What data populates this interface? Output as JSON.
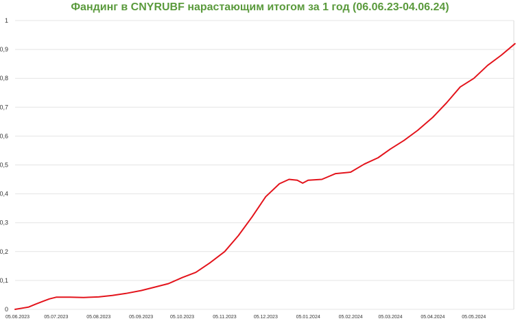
{
  "chart_data": {
    "type": "line",
    "title": "Фандинг в CNYRUBF нарастающим итогом за 1 год (06.06.23-04.06.24)",
    "xlabel": "",
    "ylabel": "",
    "ylim": [
      0,
      1
    ],
    "grid": true,
    "legend": "none",
    "y_ticks": [
      "0",
      "0,1",
      "0,2",
      "0,3",
      "0,4",
      "0,5",
      "0,6",
      "0,7",
      "0,8",
      "0,9",
      "1"
    ],
    "x_tick_labels": [
      "05.06.2023",
      "05.07.2023",
      "05.08.2023",
      "05.09.2023",
      "05.10.2023",
      "05.11.2023",
      "05.12.2023",
      "05.01.2024",
      "05.02.2024",
      "05.03.2024",
      "05.04.2024",
      "05.05.2024"
    ],
    "series": [
      {
        "color": "#e3131b",
        "points": [
          [
            "05.06.2023",
            0.0
          ],
          [
            "10.06.2023",
            0.004
          ],
          [
            "15.06.2023",
            0.008
          ],
          [
            "20.06.2023",
            0.018
          ],
          [
            "25.06.2023",
            0.027
          ],
          [
            "30.06.2023",
            0.036
          ],
          [
            "05.07.2023",
            0.042
          ],
          [
            "15.07.2023",
            0.042
          ],
          [
            "25.07.2023",
            0.041
          ],
          [
            "05.08.2023",
            0.043
          ],
          [
            "15.08.2023",
            0.048
          ],
          [
            "25.08.2023",
            0.055
          ],
          [
            "05.09.2023",
            0.065
          ],
          [
            "15.09.2023",
            0.077
          ],
          [
            "25.09.2023",
            0.089
          ],
          [
            "05.10.2023",
            0.11
          ],
          [
            "15.10.2023",
            0.128
          ],
          [
            "25.10.2023",
            0.16
          ],
          [
            "05.11.2023",
            0.2
          ],
          [
            "15.11.2023",
            0.255
          ],
          [
            "25.11.2023",
            0.32
          ],
          [
            "05.12.2023",
            0.39
          ],
          [
            "15.12.2023",
            0.435
          ],
          [
            "22.12.2023",
            0.45
          ],
          [
            "28.12.2023",
            0.447
          ],
          [
            "01.01.2024",
            0.437
          ],
          [
            "05.01.2024",
            0.447
          ],
          [
            "15.01.2024",
            0.45
          ],
          [
            "25.01.2024",
            0.47
          ],
          [
            "05.02.2024",
            0.475
          ],
          [
            "15.02.2024",
            0.503
          ],
          [
            "25.02.2024",
            0.525
          ],
          [
            "05.03.2024",
            0.555
          ],
          [
            "15.03.2024",
            0.585
          ],
          [
            "25.03.2024",
            0.62
          ],
          [
            "05.04.2024",
            0.665
          ],
          [
            "15.04.2024",
            0.715
          ],
          [
            "25.04.2024",
            0.77
          ],
          [
            "05.05.2024",
            0.8
          ],
          [
            "15.05.2024",
            0.845
          ],
          [
            "25.05.2024",
            0.88
          ],
          [
            "04.06.2024",
            0.92
          ]
        ]
      }
    ]
  }
}
